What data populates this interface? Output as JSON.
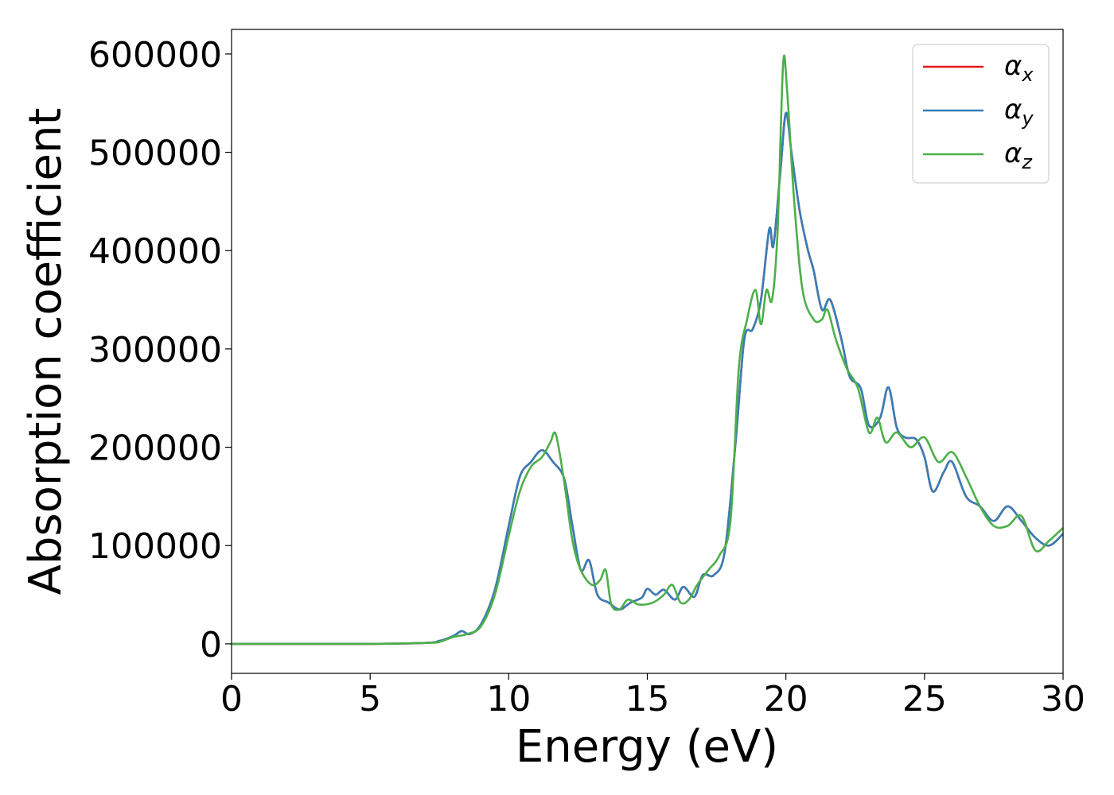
{
  "chart_data": {
    "type": "line",
    "title": "",
    "xlabel": "Energy (eV)",
    "ylabel": "Absorption coefficient",
    "xlim": [
      0,
      30
    ],
    "ylim": [
      -30000,
      625000
    ],
    "x_ticks": [
      0,
      5,
      10,
      15,
      20,
      25,
      30
    ],
    "y_ticks": [
      0,
      100000,
      200000,
      300000,
      400000,
      500000,
      600000
    ],
    "grid": false,
    "legend_position": "top-right",
    "series": [
      {
        "name": "α_x",
        "legend_symbol": "α",
        "legend_subscript": "x",
        "color": "#e41a1c",
        "x": [
          0,
          5,
          7,
          7.5,
          8,
          8.3,
          8.6,
          9,
          9.5,
          10,
          10.4,
          10.8,
          11.2,
          11.6,
          12,
          12.3,
          12.6,
          12.9,
          13.2,
          13.6,
          14,
          14.4,
          14.8,
          15,
          15.3,
          15.6,
          16,
          16.3,
          16.7,
          17,
          17.4,
          17.8,
          18.2,
          18.5,
          18.8,
          19.1,
          19.4,
          19.55,
          19.8,
          20,
          20.2,
          20.5,
          20.8,
          21,
          21.3,
          21.6,
          22,
          22.3,
          22.7,
          23,
          23.4,
          23.7,
          24,
          24.3,
          24.7,
          25,
          25.3,
          25.7,
          26,
          26.5,
          27,
          27.5,
          28,
          28.5,
          29,
          29.5,
          30
        ],
        "values": [
          0,
          0,
          1000,
          3000,
          8000,
          13000,
          10000,
          20000,
          55000,
          120000,
          170000,
          185000,
          197000,
          185000,
          168000,
          120000,
          75000,
          85000,
          50000,
          42000,
          35000,
          42000,
          47000,
          56000,
          50000,
          55000,
          45000,
          58000,
          48000,
          70000,
          70000,
          95000,
          210000,
          310000,
          320000,
          350000,
          422000,
          405000,
          480000,
          540000,
          500000,
          440000,
          400000,
          380000,
          340000,
          350000,
          310000,
          272000,
          260000,
          222000,
          230000,
          261000,
          220000,
          210000,
          208000,
          190000,
          155000,
          175000,
          185000,
          150000,
          140000,
          125000,
          140000,
          125000,
          108000,
          100000,
          112000
        ]
      },
      {
        "name": "α_y",
        "legend_symbol": "α",
        "legend_subscript": "y",
        "color": "#377eb8",
        "x": [
          0,
          5,
          7,
          7.5,
          8,
          8.3,
          8.6,
          9,
          9.5,
          10,
          10.4,
          10.8,
          11.2,
          11.6,
          12,
          12.3,
          12.6,
          12.9,
          13.2,
          13.6,
          14,
          14.4,
          14.8,
          15,
          15.3,
          15.6,
          16,
          16.3,
          16.7,
          17,
          17.4,
          17.8,
          18.2,
          18.5,
          18.8,
          19.1,
          19.4,
          19.55,
          19.8,
          20,
          20.2,
          20.5,
          20.8,
          21,
          21.3,
          21.6,
          22,
          22.3,
          22.7,
          23,
          23.4,
          23.7,
          24,
          24.3,
          24.7,
          25,
          25.3,
          25.7,
          26,
          26.5,
          27,
          27.5,
          28,
          28.5,
          29,
          29.5,
          30
        ],
        "values": [
          0,
          0,
          1000,
          3000,
          8000,
          13000,
          10000,
          20000,
          55000,
          120000,
          170000,
          185000,
          197000,
          185000,
          168000,
          120000,
          75000,
          85000,
          50000,
          42000,
          35000,
          42000,
          47000,
          56000,
          50000,
          55000,
          45000,
          58000,
          48000,
          70000,
          70000,
          95000,
          210000,
          310000,
          320000,
          350000,
          422000,
          405000,
          480000,
          540000,
          500000,
          440000,
          400000,
          380000,
          340000,
          350000,
          310000,
          272000,
          260000,
          222000,
          230000,
          261000,
          220000,
          210000,
          208000,
          190000,
          155000,
          175000,
          185000,
          150000,
          140000,
          125000,
          140000,
          125000,
          108000,
          100000,
          112000
        ]
      },
      {
        "name": "α_z",
        "legend_symbol": "α",
        "legend_subscript": "z",
        "color": "#4daf4a",
        "x": [
          0,
          5,
          7,
          7.5,
          8,
          8.5,
          9,
          9.5,
          10,
          10.4,
          10.8,
          11.2,
          11.5,
          11.7,
          12,
          12.3,
          12.6,
          13,
          13.3,
          13.5,
          13.7,
          14,
          14.3,
          14.7,
          15.2,
          15.6,
          15.9,
          16.2,
          16.5,
          16.8,
          17.2,
          17.6,
          18,
          18.3,
          18.6,
          18.9,
          19.1,
          19.3,
          19.5,
          19.7,
          19.9,
          20.05,
          20.3,
          20.6,
          21,
          21.3,
          21.5,
          21.8,
          22.2,
          22.6,
          23,
          23.3,
          23.6,
          24,
          24.5,
          25,
          25.5,
          26,
          26.5,
          27,
          27.5,
          28,
          28.5,
          29,
          29.5,
          30
        ],
        "values": [
          0,
          0,
          1000,
          2000,
          7000,
          10000,
          18000,
          50000,
          110000,
          155000,
          180000,
          190000,
          205000,
          213000,
          165000,
          105000,
          75000,
          60000,
          65000,
          75000,
          40000,
          35000,
          45000,
          40000,
          42000,
          50000,
          60000,
          42000,
          45000,
          60000,
          75000,
          90000,
          125000,
          280000,
          330000,
          360000,
          325000,
          360000,
          350000,
          420000,
          590000,
          560000,
          450000,
          360000,
          330000,
          330000,
          340000,
          310000,
          280000,
          260000,
          215000,
          230000,
          205000,
          215000,
          200000,
          210000,
          185000,
          195000,
          170000,
          140000,
          120000,
          120000,
          130000,
          95000,
          105000,
          118000
        ]
      }
    ]
  }
}
